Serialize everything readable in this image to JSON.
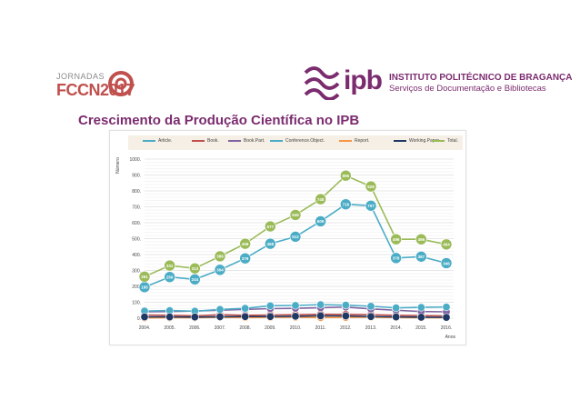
{
  "header": {
    "fccn_line1": "JORNADAS",
    "fccn_line2": "FCCN2017",
    "ipb_letters": "ipb",
    "ipb_name": "INSTITUTO POLITÉCNICO DE BRAGANÇA",
    "ipb_sub": "Serviços de Documentação e Bibliotecas"
  },
  "title": "Crescimento da Produção Científica no IPB",
  "chart_data": {
    "type": "line",
    "xlabel": "Anos",
    "ylabel": "Número",
    "categories": [
      "2004.",
      "2005.",
      "2006.",
      "2007.",
      "2008.",
      "2009.",
      "2010.",
      "2011.",
      "2012.",
      "2013.",
      "2014.",
      "2015.",
      "2016."
    ],
    "yticks": [
      "0.",
      "100.",
      "200.",
      "300.",
      "400.",
      "500.",
      "600.",
      "700.",
      "800.",
      "900.",
      "1000."
    ],
    "ylim": [
      0,
      1000
    ],
    "grid": true,
    "legend_position": "top",
    "series": [
      {
        "name": "Article.",
        "color": "#4bacc6",
        "values": [
          195,
          259,
          244,
          304,
          376,
          468,
          512,
          609,
          716,
          707,
          378,
          387,
          346
        ]
      },
      {
        "name": "Book.",
        "color": "#c0504d",
        "values": [
          20,
          18,
          15,
          22,
          18,
          20,
          22,
          25,
          24,
          22,
          18,
          16,
          14
        ]
      },
      {
        "name": "Book.Part.",
        "color": "#8064a2",
        "values": [
          40,
          42,
          45,
          50,
          55,
          60,
          62,
          66,
          70,
          58,
          50,
          42,
          40
        ]
      },
      {
        "name": "Conference.Object.",
        "color": "#4bacc6",
        "values": [
          45,
          48,
          44,
          55,
          62,
          78,
          80,
          85,
          82,
          75,
          65,
          68,
          70
        ]
      },
      {
        "name": "Report.",
        "color": "#f79646",
        "values": [
          2,
          3,
          3,
          5,
          4,
          5,
          6,
          4,
          5,
          6,
          4,
          3,
          3
        ]
      },
      {
        "name": "Working.Paper.",
        "color": "#1f3864",
        "values": [
          8,
          8,
          7,
          9,
          10,
          10,
          12,
          15,
          14,
          10,
          8,
          6,
          5
        ]
      },
      {
        "name": "Total.",
        "color": "#9bbb59",
        "values": [
          261,
          331,
          313,
          389,
          468,
          577,
          649,
          748,
          896,
          828,
          496,
          496,
          464
        ]
      }
    ],
    "data_labels": {
      "Article.": [
        "195",
        "259",
        "244",
        "304",
        "376",
        "468",
        "512",
        "609",
        "716",
        "707",
        "378",
        "387",
        "346"
      ],
      "Total.": [
        "261",
        "331",
        "313",
        "389",
        "468",
        "577",
        "649",
        "748",
        "896",
        "828",
        "496",
        "496",
        "464"
      ]
    }
  }
}
